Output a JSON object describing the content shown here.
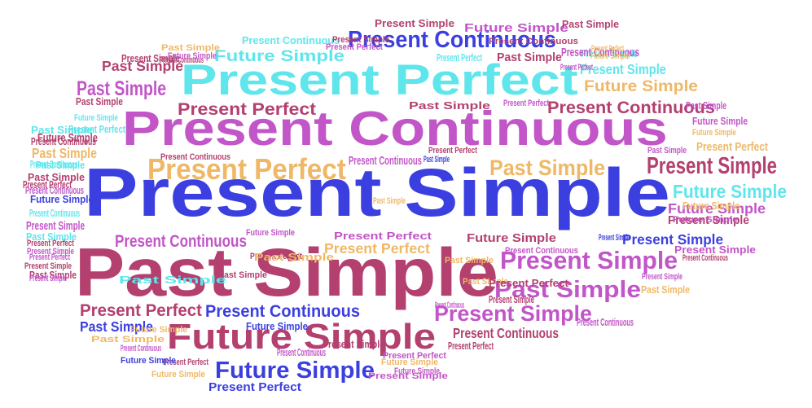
{
  "colors": {
    "blue": "#3b3fe0",
    "cyan": "#5fe6ec",
    "magenta": "#c255c8",
    "maroon": "#b3406f",
    "orange": "#efb867",
    "purple": "#7a52c9"
  },
  "words": [
    {
      "text": "Present Simple",
      "color": "#3b3fe0"
    },
    {
      "text": "Past Simple",
      "color": "#b3406f"
    },
    {
      "text": "Present Continuous",
      "color": "#c255c8"
    },
    {
      "text": "Present Perfect",
      "color": "#5fe6ec"
    },
    {
      "text": "Future Simple",
      "color": "#b3406f"
    },
    {
      "text": "Present Continuous",
      "color": "#3b3fe0"
    },
    {
      "text": "Present Perfect",
      "color": "#efb867"
    },
    {
      "text": "Present Simple",
      "color": "#c255c8"
    },
    {
      "text": "Past Simple",
      "color": "#c255c8"
    },
    {
      "text": "Present Simple",
      "color": "#c255c8"
    },
    {
      "text": "Future Simple",
      "color": "#3b3fe0"
    },
    {
      "text": "Present Perfect",
      "color": "#b3406f"
    },
    {
      "text": "Present Continuous",
      "color": "#3b3fe0"
    },
    {
      "text": "Present Simple",
      "color": "#b3406f"
    },
    {
      "text": "Past Simple",
      "color": "#efb867"
    },
    {
      "text": "Future Simple",
      "color": "#5fe6ec"
    },
    {
      "text": "Past Simple",
      "color": "#c255c8"
    },
    {
      "text": "Present Continuous",
      "color": "#b3406f"
    },
    {
      "text": "Present Simple",
      "color": "#5fe6ec"
    },
    {
      "text": "Future Simple",
      "color": "#efb867"
    },
    {
      "text": "Past Simple",
      "color": "#b3406f"
    },
    {
      "text": "Future Simple",
      "color": "#5fe6ec"
    },
    {
      "text": "Present Perfect",
      "color": "#b3406f"
    },
    {
      "text": "Present Continuous",
      "color": "#c255c8"
    },
    {
      "text": "Present Continuous",
      "color": "#5fe6ec"
    },
    {
      "text": "Present Simple",
      "color": "#3b3fe0"
    },
    {
      "text": "Past Simple",
      "color": "#3b3fe0"
    },
    {
      "text": "Future Simple",
      "color": "#c255c8"
    },
    {
      "text": "Present Perfect",
      "color": "#3b3fe0"
    },
    {
      "text": "Past Simple",
      "color": "#efb867"
    },
    {
      "text": "Present Simple",
      "color": "#b3406f"
    },
    {
      "text": "Present Continuous",
      "color": "#b3406f"
    },
    {
      "text": "Future Simple",
      "color": "#b3406f"
    },
    {
      "text": "Present Simple",
      "color": "#c255c8"
    },
    {
      "text": "Present Simple",
      "color": "#5fe6ec"
    },
    {
      "text": "Present Perfect",
      "color": "#efb867"
    },
    {
      "text": "Future Simple",
      "color": "#c255c8"
    },
    {
      "text": "Present Perfect",
      "color": "#efb867"
    },
    {
      "text": "Present Simple",
      "color": "#c255c8"
    },
    {
      "text": "Past Simple",
      "color": "#b3406f"
    },
    {
      "text": "Present Perfect",
      "color": "#c255c8"
    },
    {
      "text": "Future Simple",
      "color": "#b3406f"
    },
    {
      "text": "Past Simple",
      "color": "#5fe6ec"
    },
    {
      "text": "Present Continuous",
      "color": "#c255c8"
    },
    {
      "text": "Present Perfect",
      "color": "#b3406f"
    },
    {
      "text": "Present Continuous",
      "color": "#c255c8"
    },
    {
      "text": "Past Simple",
      "color": "#b3406f"
    },
    {
      "text": "Present Perfect",
      "color": "#5fe6ec"
    },
    {
      "text": "Past Simple",
      "color": "#c255c8"
    },
    {
      "text": "Present Continuous",
      "color": "#b3406f"
    },
    {
      "text": "Present Perfect",
      "color": "#c255c8"
    },
    {
      "text": "Future Simple",
      "color": "#3b3fe0"
    },
    {
      "text": "Present Perfect",
      "color": "#5fe6ec"
    },
    {
      "text": "Past Simple",
      "color": "#efb867"
    },
    {
      "text": "Past Simple",
      "color": "#5fe6ec"
    },
    {
      "text": "Present Continuous",
      "color": "#c255c8"
    },
    {
      "text": "Present Simple",
      "color": "#c255c8"
    },
    {
      "text": "Future Simple",
      "color": "#efb867"
    },
    {
      "text": "Present Perfect",
      "color": "#b3406f"
    },
    {
      "text": "Present Continuous",
      "color": "#c255c8"
    },
    {
      "text": "Present Continuous",
      "color": "#c255c8"
    },
    {
      "text": "Future Simple",
      "color": "#3b3fe0"
    },
    {
      "text": "Past Simple",
      "color": "#efb867"
    },
    {
      "text": "Present Perfect",
      "color": "#b3406f"
    },
    {
      "text": "Future Simple",
      "color": "#c255c8"
    },
    {
      "text": "Present Simple",
      "color": "#b3406f"
    },
    {
      "text": "Past Simple",
      "color": "#efb867"
    },
    {
      "text": "Past Simple",
      "color": "#b3406f"
    },
    {
      "text": "Present Continuous",
      "color": "#5fe6ec"
    },
    {
      "text": "Present Perfect",
      "color": "#c255c8"
    },
    {
      "text": "Future Simple",
      "color": "#3b3fe0"
    },
    {
      "text": "Past Simple",
      "color": "#5fe6ec"
    },
    {
      "text": "Present Simple",
      "color": "#b3406f"
    },
    {
      "text": "Present Continuous",
      "color": "#5fe6ec"
    },
    {
      "text": "Present Perfect",
      "color": "#b3406f"
    },
    {
      "text": "Future Simple",
      "color": "#c255c8"
    },
    {
      "text": "Past Simple",
      "color": "#b3406f"
    },
    {
      "text": "Present Perfect",
      "color": "#b3406f"
    },
    {
      "text": "Past Simple",
      "color": "#b3406f"
    },
    {
      "text": "Present Simple",
      "color": "#b3406f"
    },
    {
      "text": "Future Simple",
      "color": "#5fe6ec"
    },
    {
      "text": "Present Continuous",
      "color": "#b3406f"
    },
    {
      "text": "Future Simple",
      "color": "#efb867"
    },
    {
      "text": "Present Simple",
      "color": "#c255c8"
    },
    {
      "text": "Present Simple",
      "color": "#b3406f"
    },
    {
      "text": "Present Continuous",
      "color": "#b3406f"
    },
    {
      "text": "Future Simple",
      "color": "#c255c8"
    },
    {
      "text": "Past Simple",
      "color": "#3b3fe0"
    },
    {
      "text": "Present Simple",
      "color": "#3b3fe0"
    },
    {
      "text": "Past Simple",
      "color": "#c255c8"
    },
    {
      "text": "Past Simple",
      "color": "#b3406f"
    },
    {
      "text": "Present Perfect",
      "color": "#c255c8"
    },
    {
      "text": "Past Simple",
      "color": "#efb867"
    },
    {
      "text": "Present Simple",
      "color": "#b3406f"
    },
    {
      "text": "Past Simple",
      "color": "#efb867"
    },
    {
      "text": "Future Simple",
      "color": "#efb867"
    },
    {
      "text": "Present Perfect",
      "color": "#c255c8"
    },
    {
      "text": "Past Simple",
      "color": "#b3406f"
    },
    {
      "text": "Future Simple",
      "color": "#efb867"
    },
    {
      "text": "Past Simple",
      "color": "#efb867"
    },
    {
      "text": "Present Perfect",
      "color": "#b3406f"
    },
    {
      "text": "Future Simple",
      "color": "#c255c8"
    },
    {
      "text": "Present Simple",
      "color": "#c255c8"
    },
    {
      "text": "Present Continuous",
      "color": "#b3406f"
    },
    {
      "text": "Past Simple",
      "color": "#efb867"
    },
    {
      "text": "Present Perfect",
      "color": "#b3406f"
    },
    {
      "text": "Present Continuous",
      "color": "#b3406f"
    },
    {
      "text": "Present Simple",
      "color": "#c255c8"
    },
    {
      "text": "Present Simple",
      "color": "#b3406f"
    },
    {
      "text": "Present Continuous",
      "color": "#c255c8"
    },
    {
      "text": "Future Simple",
      "color": "#efb867"
    },
    {
      "text": "Future Simple",
      "color": "#c255c8"
    },
    {
      "text": "Present Continuous",
      "color": "#c255c8"
    },
    {
      "text": "Present Continuous",
      "color": "#c255c8"
    },
    {
      "text": "Future Simple",
      "color": "#efb867"
    },
    {
      "text": "Present Perfect",
      "color": "#efb867"
    },
    {
      "text": "Present Perfect",
      "color": "#c255c8"
    },
    {
      "text": "Past Simple",
      "color": "#5fe6ec"
    },
    {
      "text": "Present Continuous",
      "color": "#5fe6ec"
    }
  ]
}
